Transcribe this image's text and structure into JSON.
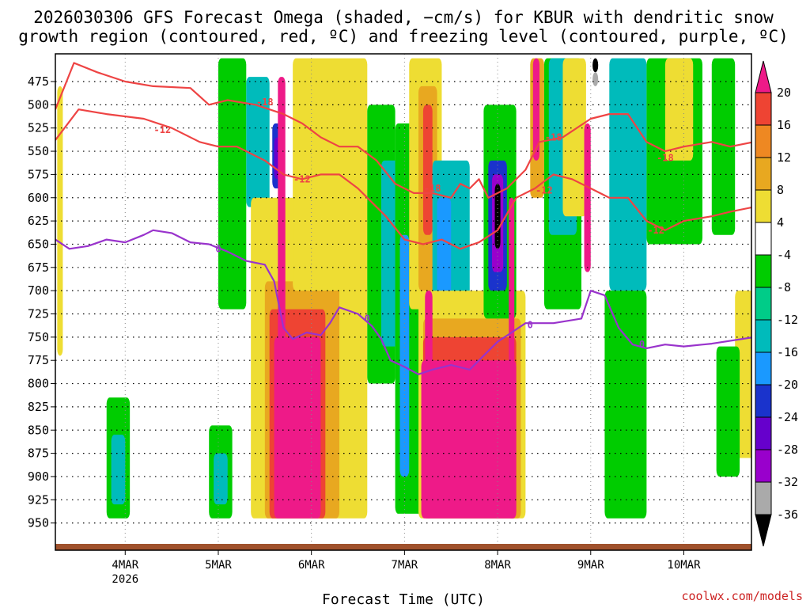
{
  "chart_data": {
    "type": "heatmap",
    "title_line1": "2026030306 GFS Forecast Omega (shaded, −cm/s) for KBUR with dendritic snow",
    "title_line2": "growth region (contoured, red, ºC) and freezing level (contoured, purple, ºC)",
    "xlabel": "Forecast Time (UTC)",
    "credit": "coolwx.com/models",
    "x_ticks": [
      {
        "day": 4,
        "label": "4MAR",
        "sublabel": "2026"
      },
      {
        "day": 5,
        "label": "5MAR",
        "sublabel": ""
      },
      {
        "day": 6,
        "label": "6MAR",
        "sublabel": ""
      },
      {
        "day": 7,
        "label": "7MAR",
        "sublabel": ""
      },
      {
        "day": 8,
        "label": "8MAR",
        "sublabel": ""
      },
      {
        "day": 9,
        "label": "9MAR",
        "sublabel": ""
      },
      {
        "day": 10,
        "label": "10MAR",
        "sublabel": ""
      }
    ],
    "x_range_days": [
      3.25,
      10.75
    ],
    "y_label_suffix": "",
    "y_ticks": [
      "475",
      "500",
      "525",
      "550",
      "575",
      "600",
      "625",
      "650",
      "675",
      "700",
      "725",
      "750",
      "775",
      "800",
      "825",
      "850",
      "875",
      "900",
      "925",
      "950"
    ],
    "y_range_hpa": [
      450,
      955
    ],
    "colorbar": {
      "levels": [
        -36,
        -32,
        -28,
        -24,
        -20,
        -16,
        -12,
        -8,
        -4,
        4,
        8,
        12,
        16,
        20
      ],
      "labels": [
        "20",
        "16",
        "12",
        "8",
        "4",
        "-4",
        "-8",
        "-12",
        "-16",
        "-20",
        "-24",
        "-28",
        "-32",
        "-36"
      ],
      "colors": {
        "le_-36": "#000000",
        "-36_-32": "#aaaaaa",
        "-32_-28": "#9900cc",
        "-28_-24": "#6600cc",
        "-24_-20": "#1a33cc",
        "-20_-16": "#1a99ff",
        "-16_-12": "#00bbbb",
        "-12_-8": "#00cc88",
        "-8_-4": "#00cc00",
        "-4_4": "#ffffff",
        "4_8": "#eedd33",
        "8_12": "#e8a820",
        "12_16": "#ee8822",
        "16_20": "#ee4433",
        "ge_20": "#ee1a88"
      }
    },
    "contours": [
      {
        "name": "dendritic top (-18C)",
        "label": "-18",
        "color": "#ee4444",
        "points": [
          [
            3.25,
            505
          ],
          [
            3.45,
            455
          ],
          [
            3.7,
            465
          ],
          [
            4.0,
            475
          ],
          [
            4.3,
            480
          ],
          [
            4.7,
            482
          ],
          [
            4.9,
            500
          ],
          [
            5.1,
            495
          ],
          [
            5.4,
            500
          ],
          [
            5.7,
            510
          ],
          [
            5.9,
            520
          ],
          [
            6.1,
            535
          ],
          [
            6.3,
            545
          ],
          [
            6.5,
            545
          ],
          [
            6.7,
            560
          ],
          [
            6.9,
            585
          ],
          [
            7.1,
            595
          ],
          [
            7.3,
            595
          ],
          [
            7.5,
            600
          ],
          [
            7.6,
            585
          ],
          [
            7.7,
            590
          ],
          [
            7.8,
            580
          ],
          [
            7.9,
            600
          ],
          [
            8.1,
            590
          ],
          [
            8.3,
            570
          ],
          [
            8.45,
            540
          ],
          [
            8.7,
            535
          ],
          [
            9.0,
            515
          ],
          [
            9.2,
            510
          ],
          [
            9.4,
            510
          ],
          [
            9.6,
            540
          ],
          [
            9.8,
            550
          ],
          [
            10.0,
            545
          ],
          [
            10.3,
            540
          ],
          [
            10.5,
            545
          ],
          [
            10.75,
            540
          ]
        ],
        "label_positions": [
          [
            5.5,
            497
          ],
          [
            7.3,
            590
          ],
          [
            8.6,
            535
          ],
          [
            9.8,
            557
          ]
        ]
      },
      {
        "name": "dendritic bottom (-12C)",
        "label": "-12",
        "color": "#ee4444",
        "points": [
          [
            3.25,
            538
          ],
          [
            3.5,
            505
          ],
          [
            3.8,
            510
          ],
          [
            4.2,
            515
          ],
          [
            4.5,
            525
          ],
          [
            4.8,
            540
          ],
          [
            5.0,
            545
          ],
          [
            5.2,
            545
          ],
          [
            5.5,
            560
          ],
          [
            5.7,
            575
          ],
          [
            5.9,
            580
          ],
          [
            6.1,
            575
          ],
          [
            6.3,
            575
          ],
          [
            6.5,
            590
          ],
          [
            6.8,
            620
          ],
          [
            7.0,
            645
          ],
          [
            7.2,
            650
          ],
          [
            7.4,
            645
          ],
          [
            7.6,
            655
          ],
          [
            7.8,
            648
          ],
          [
            8.0,
            635
          ],
          [
            8.2,
            600
          ],
          [
            8.4,
            590
          ],
          [
            8.6,
            575
          ],
          [
            8.8,
            580
          ],
          [
            9.0,
            590
          ],
          [
            9.2,
            600
          ],
          [
            9.4,
            600
          ],
          [
            9.6,
            625
          ],
          [
            9.8,
            635
          ],
          [
            10.0,
            625
          ],
          [
            10.3,
            620
          ],
          [
            10.5,
            615
          ],
          [
            10.75,
            610
          ]
        ],
        "label_positions": [
          [
            4.4,
            527
          ],
          [
            5.9,
            580
          ],
          [
            8.5,
            592
          ],
          [
            9.7,
            635
          ]
        ]
      },
      {
        "name": "freezing level (0C)",
        "label": "0",
        "color": "#9933cc",
        "points": [
          [
            3.25,
            645
          ],
          [
            3.4,
            655
          ],
          [
            3.6,
            652
          ],
          [
            3.8,
            645
          ],
          [
            4.0,
            648
          ],
          [
            4.2,
            640
          ],
          [
            4.3,
            635
          ],
          [
            4.5,
            638
          ],
          [
            4.7,
            648
          ],
          [
            4.9,
            650
          ],
          [
            5.1,
            658
          ],
          [
            5.3,
            668
          ],
          [
            5.5,
            672
          ],
          [
            5.6,
            690
          ],
          [
            5.7,
            740
          ],
          [
            5.8,
            752
          ],
          [
            5.95,
            745
          ],
          [
            6.1,
            748
          ],
          [
            6.2,
            735
          ],
          [
            6.3,
            718
          ],
          [
            6.5,
            725
          ],
          [
            6.65,
            738
          ],
          [
            6.75,
            752
          ],
          [
            6.85,
            775
          ],
          [
            7.0,
            782
          ],
          [
            7.15,
            790
          ],
          [
            7.3,
            785
          ],
          [
            7.5,
            780
          ],
          [
            7.7,
            785
          ],
          [
            7.85,
            770
          ],
          [
            8.0,
            755
          ],
          [
            8.15,
            745
          ],
          [
            8.3,
            735
          ],
          [
            8.6,
            735
          ],
          [
            8.9,
            730
          ],
          [
            9.0,
            700
          ],
          [
            9.15,
            705
          ],
          [
            9.3,
            740
          ],
          [
            9.45,
            758
          ],
          [
            9.6,
            762
          ],
          [
            9.8,
            758
          ],
          [
            10.0,
            760
          ],
          [
            10.3,
            757
          ],
          [
            10.75,
            750
          ]
        ],
        "label_positions": [
          [
            5.0,
            655
          ],
          [
            6.6,
            730
          ],
          [
            8.35,
            737
          ],
          [
            9.55,
            758
          ]
        ]
      }
    ],
    "omega_regions": [
      {
        "name": "left-positive-strip",
        "color": "#eedd33",
        "x": [
          3.27,
          3.33
        ],
        "p": [
          480,
          770
        ]
      },
      {
        "name": "4mar-negative-cell",
        "color": "#00cc00",
        "x": [
          3.8,
          4.05
        ],
        "p": [
          815,
          945
        ]
      },
      {
        "name": "4mar-negative-core",
        "color": "#00bbbb",
        "x": [
          3.85,
          4.0
        ],
        "p": [
          855,
          930
        ]
      },
      {
        "name": "5mar-negative-cell",
        "color": "#00cc00",
        "x": [
          4.9,
          5.15
        ],
        "p": [
          845,
          945
        ]
      },
      {
        "name": "5mar-negative-core",
        "color": "#00bbbb",
        "x": [
          4.95,
          5.1
        ],
        "p": [
          875,
          930
        ]
      },
      {
        "name": "5mar-upper-green",
        "color": "#00cc00",
        "x": [
          5.0,
          5.3
        ],
        "p": [
          450,
          720
        ]
      },
      {
        "name": "5mar-upper-teal",
        "color": "#00bbbb",
        "x": [
          5.3,
          5.55
        ],
        "p": [
          470,
          610
        ]
      },
      {
        "name": "5mar-blue-core",
        "color": "#1a33cc",
        "x": [
          5.58,
          5.68
        ],
        "p": [
          520,
          590
        ]
      },
      {
        "name": "5mar-purple-core",
        "color": "#6600cc",
        "x": [
          5.6,
          5.66
        ],
        "p": [
          535,
          580
        ]
      },
      {
        "name": "6mar-yellow-wide",
        "color": "#eedd33",
        "x": [
          5.35,
          6.6
        ],
        "p": [
          600,
          945
        ]
      },
      {
        "name": "6mar-orange",
        "color": "#e8a820",
        "x": [
          5.5,
          6.3
        ],
        "p": [
          690,
          945
        ]
      },
      {
        "name": "6mar-red",
        "color": "#ee4433",
        "x": [
          5.55,
          6.15
        ],
        "p": [
          720,
          945
        ]
      },
      {
        "name": "6mar-magenta-column",
        "color": "#ee1a88",
        "x": [
          5.64,
          5.72
        ],
        "p": [
          470,
          760
        ]
      },
      {
        "name": "6mar-magenta-base",
        "color": "#ee1a88",
        "x": [
          5.6,
          6.1
        ],
        "p": [
          750,
          945
        ]
      },
      {
        "name": "6mar-upper-yellow",
        "color": "#eedd33",
        "x": [
          5.8,
          6.6
        ],
        "p": [
          450,
          700
        ]
      },
      {
        "name": "6.5mar-green",
        "color": "#00cc00",
        "x": [
          6.6,
          6.9
        ],
        "p": [
          500,
          800
        ]
      },
      {
        "name": "6.5mar-teal",
        "color": "#00bbbb",
        "x": [
          6.75,
          7.0
        ],
        "p": [
          560,
          760
        ]
      },
      {
        "name": "7mar-green",
        "color": "#00cc00",
        "x": [
          6.9,
          7.25
        ],
        "p": [
          520,
          940
        ]
      },
      {
        "name": "7mar-blue",
        "color": "#1a99ff",
        "x": [
          6.95,
          7.05
        ],
        "p": [
          640,
          900
        ]
      },
      {
        "name": "7mar-upper-yellow",
        "color": "#eedd33",
        "x": [
          7.05,
          7.4
        ],
        "p": [
          450,
          720
        ]
      },
      {
        "name": "7mar-upper-orange",
        "color": "#e8a820",
        "x": [
          7.15,
          7.35
        ],
        "p": [
          480,
          700
        ]
      },
      {
        "name": "7mar-upper-red",
        "color": "#ee4433",
        "x": [
          7.2,
          7.3
        ],
        "p": [
          500,
          640
        ]
      },
      {
        "name": "7.5mar-teal",
        "color": "#00bbbb",
        "x": [
          7.3,
          7.7
        ],
        "p": [
          560,
          760
        ]
      },
      {
        "name": "7.5mar-blue",
        "color": "#1a99ff",
        "x": [
          7.35,
          7.5
        ],
        "p": [
          600,
          760
        ]
      },
      {
        "name": "7.5mar-yellow-wide",
        "color": "#eedd33",
        "x": [
          7.15,
          8.3
        ],
        "p": [
          700,
          945
        ]
      },
      {
        "name": "7.5mar-orange",
        "color": "#e8a820",
        "x": [
          7.2,
          8.25
        ],
        "p": [
          730,
          945
        ]
      },
      {
        "name": "7.5mar-red",
        "color": "#ee4433",
        "x": [
          7.2,
          8.2
        ],
        "p": [
          750,
          945
        ]
      },
      {
        "name": "7.5mar-magenta",
        "color": "#ee1a88",
        "x": [
          7.18,
          8.2
        ],
        "p": [
          775,
          945
        ]
      },
      {
        "name": "7.2mar-magenta-column",
        "color": "#ee1a88",
        "x": [
          7.22,
          7.3
        ],
        "p": [
          700,
          945
        ]
      },
      {
        "name": "8mar-green",
        "color": "#00cc00",
        "x": [
          7.85,
          8.2
        ],
        "p": [
          500,
          730
        ]
      },
      {
        "name": "8mar-blue",
        "color": "#1a33cc",
        "x": [
          7.9,
          8.1
        ],
        "p": [
          560,
          700
        ]
      },
      {
        "name": "8mar-purple",
        "color": "#9900cc",
        "x": [
          7.94,
          8.06
        ],
        "p": [
          575,
          680
        ]
      },
      {
        "name": "8mar-black-core",
        "color": "#000000",
        "x": [
          7.97,
          8.03
        ],
        "p": [
          585,
          655
        ]
      },
      {
        "name": "8mar-magenta-column",
        "color": "#ee1a88",
        "x": [
          8.12,
          8.18
        ],
        "p": [
          600,
          945
        ]
      },
      {
        "name": "8.4mar-orange",
        "color": "#e8a820",
        "x": [
          8.35,
          8.5
        ],
        "p": [
          450,
          600
        ]
      },
      {
        "name": "8.4mar-magenta",
        "color": "#ee1a88",
        "x": [
          8.38,
          8.45
        ],
        "p": [
          450,
          560
        ]
      },
      {
        "name": "8.6mar-green",
        "color": "#00cc00",
        "x": [
          8.5,
          8.9
        ],
        "p": [
          450,
          720
        ]
      },
      {
        "name": "8.6mar-teal",
        "color": "#00bbbb",
        "x": [
          8.55,
          8.85
        ],
        "p": [
          450,
          640
        ]
      },
      {
        "name": "8.9mar-yellow",
        "color": "#eedd33",
        "x": [
          8.7,
          8.95
        ],
        "p": [
          450,
          620
        ]
      },
      {
        "name": "9mar-magenta",
        "color": "#ee1a88",
        "x": [
          8.93,
          9.0
        ],
        "p": [
          520,
          680
        ]
      },
      {
        "name": "9mar-black-top",
        "color": "#000000",
        "x": [
          9.02,
          9.08
        ],
        "p": [
          450,
          465
        ]
      },
      {
        "name": "9mar-gray-top",
        "color": "#aaaaaa",
        "x": [
          9.02,
          9.08
        ],
        "p": [
          465,
          480
        ]
      },
      {
        "name": "9.2mar-blue",
        "color": "#1a99ff",
        "x": [
          9.25,
          9.55
        ],
        "p": [
          540,
          660
        ]
      },
      {
        "name": "9.2mar-teal",
        "color": "#00bbbb",
        "x": [
          9.2,
          9.6
        ],
        "p": [
          450,
          700
        ]
      },
      {
        "name": "9.6mar-green",
        "color": "#00cc00",
        "x": [
          9.6,
          10.2
        ],
        "p": [
          450,
          650
        ]
      },
      {
        "name": "9.4mar-green-lower",
        "color": "#00cc00",
        "x": [
          9.15,
          9.6
        ],
        "p": [
          700,
          945
        ]
      },
      {
        "name": "9.8mar-yellow",
        "color": "#eedd33",
        "x": [
          9.8,
          10.1
        ],
        "p": [
          450,
          560
        ]
      },
      {
        "name": "10.3mar-green",
        "color": "#00cc00",
        "x": [
          10.3,
          10.55
        ],
        "p": [
          450,
          640
        ]
      },
      {
        "name": "10.5mar-yellow-right",
        "color": "#eedd33",
        "x": [
          10.55,
          10.75
        ],
        "p": [
          700,
          880
        ]
      },
      {
        "name": "10.4mar-green-lower",
        "color": "#00cc00",
        "x": [
          10.35,
          10.6
        ],
        "p": [
          760,
          900
        ]
      }
    ]
  }
}
